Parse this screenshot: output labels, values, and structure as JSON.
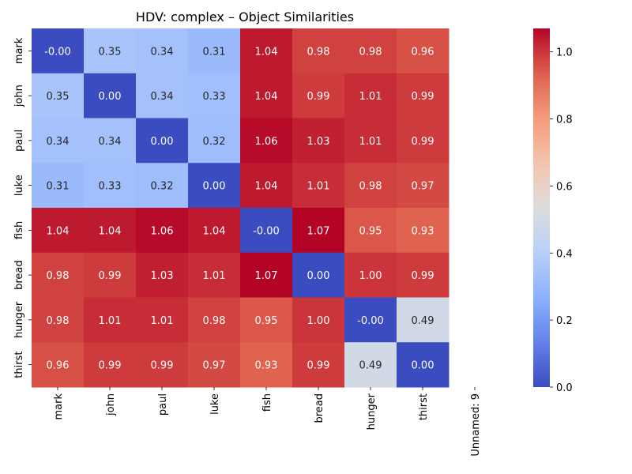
{
  "chart_data": {
    "type": "heatmap",
    "title": "HDV: complex – Object Similarities",
    "row_labels": [
      "mark",
      "john",
      "paul",
      "luke",
      "fish",
      "bread",
      "hunger",
      "thirst"
    ],
    "col_labels": [
      "mark",
      "john",
      "paul",
      "luke",
      "fish",
      "bread",
      "hunger",
      "thirst",
      "Unnamed: 9"
    ],
    "values": [
      [
        -0.0,
        0.35,
        0.34,
        0.31,
        1.04,
        0.98,
        0.98,
        0.96,
        null
      ],
      [
        0.35,
        0.0,
        0.34,
        0.33,
        1.04,
        0.99,
        1.01,
        0.99,
        null
      ],
      [
        0.34,
        0.34,
        0.0,
        0.32,
        1.06,
        1.03,
        1.01,
        0.99,
        null
      ],
      [
        0.31,
        0.33,
        0.32,
        0.0,
        1.04,
        1.01,
        0.98,
        0.97,
        null
      ],
      [
        1.04,
        1.04,
        1.06,
        1.04,
        -0.0,
        1.07,
        0.95,
        0.93,
        null
      ],
      [
        0.98,
        0.99,
        1.03,
        1.01,
        1.07,
        0.0,
        1.0,
        0.99,
        null
      ],
      [
        0.98,
        1.01,
        1.01,
        0.98,
        0.95,
        1.0,
        -0.0,
        0.49,
        null
      ],
      [
        0.96,
        0.99,
        0.99,
        0.97,
        0.93,
        0.99,
        0.49,
        0.0,
        null
      ]
    ],
    "cell_text": [
      [
        "-0.00",
        "0.35",
        "0.34",
        "0.31",
        "1.04",
        "0.98",
        "0.98",
        "0.96"
      ],
      [
        "0.35",
        "0.00",
        "0.34",
        "0.33",
        "1.04",
        "0.99",
        "1.01",
        "0.99"
      ],
      [
        "0.34",
        "0.34",
        "0.00",
        "0.32",
        "1.06",
        "1.03",
        "1.01",
        "0.99"
      ],
      [
        "0.31",
        "0.33",
        "0.32",
        "0.00",
        "1.04",
        "1.01",
        "0.98",
        "0.97"
      ],
      [
        "1.04",
        "1.04",
        "1.06",
        "1.04",
        "-0.00",
        "1.07",
        "0.95",
        "0.93"
      ],
      [
        "0.98",
        "0.99",
        "1.03",
        "1.01",
        "1.07",
        "0.00",
        "1.00",
        "0.99"
      ],
      [
        "0.98",
        "1.01",
        "1.01",
        "0.98",
        "0.95",
        "1.00",
        "-0.00",
        "0.49"
      ],
      [
        "0.96",
        "0.99",
        "0.99",
        "0.97",
        "0.93",
        "0.99",
        "0.49",
        "0.00"
      ]
    ],
    "colormap": "coolwarm",
    "vmin": 0.0,
    "vmax": 1.07,
    "colorbar_ticks": [
      0.0,
      0.2,
      0.4,
      0.6,
      0.8,
      1.0
    ],
    "colorbar_tick_labels": [
      "0.0",
      "0.2",
      "0.4",
      "0.6",
      "0.8",
      "1.0"
    ],
    "xlabel": "",
    "ylabel": ""
  }
}
